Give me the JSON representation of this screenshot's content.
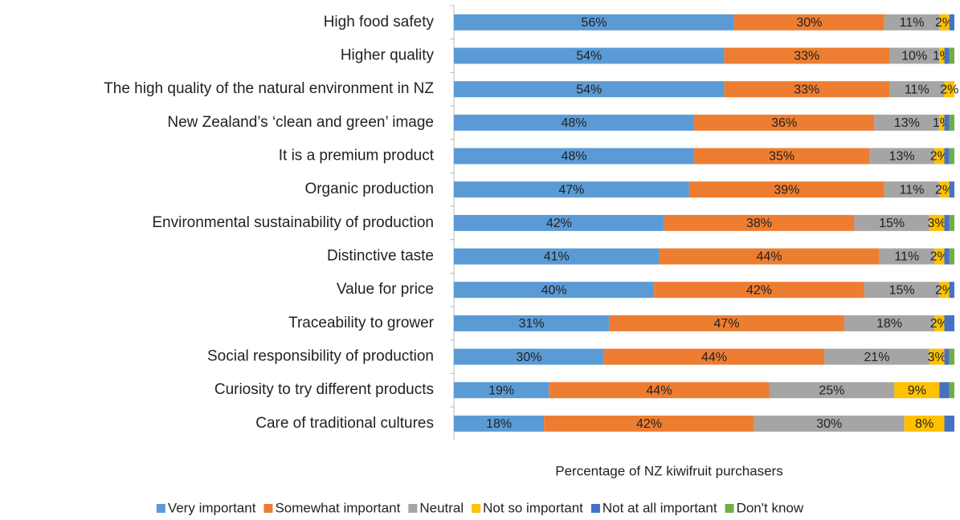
{
  "chart_data": {
    "type": "stacked_bar_horizontal",
    "categories": [
      "High food safety",
      "Higher quality",
      "The high quality of the natural environment in NZ",
      "New Zealand’s ‘clean and green’ image",
      "It is a premium product",
      "Organic production",
      "Environmental sustainability of production",
      "Distinctive taste",
      "Value for price",
      "Traceability to grower",
      "Social responsibility  of production",
      "Curiosity to try different products",
      "Care of traditional cultures"
    ],
    "x_label": "Percentage of NZ kiwifruit purchasers",
    "xlim": [
      0,
      100
    ],
    "legend": "bottom",
    "series": [
      {
        "name": "Very important",
        "color": "#5b9bd5",
        "values": [
          56,
          54,
          54,
          48,
          48,
          47,
          42,
          41,
          40,
          31,
          30,
          19,
          18
        ],
        "value_labels": [
          "56%",
          "54%",
          "54%",
          "48%",
          "48%",
          "47%",
          "42%",
          "41%",
          "40%",
          "31%",
          "30%",
          "19%",
          "18%"
        ]
      },
      {
        "name": "Somewhat important",
        "color": "#ed7d31",
        "values": [
          30,
          33,
          33,
          36,
          35,
          39,
          38,
          44,
          42,
          47,
          44,
          44,
          42
        ],
        "value_labels": [
          "30%",
          "33%",
          "33%",
          "36%",
          "35%",
          "39%",
          "38%",
          "44%",
          "42%",
          "47%",
          "44%",
          "44%",
          "42%"
        ]
      },
      {
        "name": "Neutral",
        "color": "#a5a5a5",
        "values": [
          11,
          10,
          11,
          13,
          13,
          11,
          15,
          11,
          15,
          18,
          21,
          25,
          30
        ],
        "value_labels": [
          "11%",
          "10%",
          "11%",
          "13%",
          "13%",
          "11%",
          "15%",
          "11%",
          "15%",
          "18%",
          "21%",
          "25%",
          "30%"
        ]
      },
      {
        "name": "Not so important",
        "color": "#ffc000",
        "values": [
          2,
          1,
          2,
          1,
          2,
          2,
          3,
          2,
          2,
          2,
          3,
          9,
          8
        ],
        "value_labels": [
          "2%",
          "1%",
          "2%",
          "1%",
          "2%",
          "2%",
          "3%",
          "2%",
          "2%",
          "2%",
          "3%",
          "9%",
          "8%"
        ]
      },
      {
        "name": "Not at all important",
        "color": "#4472c4",
        "values": [
          1,
          1,
          0,
          1,
          1,
          1,
          1,
          1,
          1,
          2,
          1,
          2,
          2
        ]
      },
      {
        "name": "Don't know",
        "color": "#70ad47",
        "values": [
          0,
          1,
          0,
          1,
          1,
          0,
          1,
          1,
          0,
          0,
          1,
          1,
          0
        ]
      }
    ]
  }
}
